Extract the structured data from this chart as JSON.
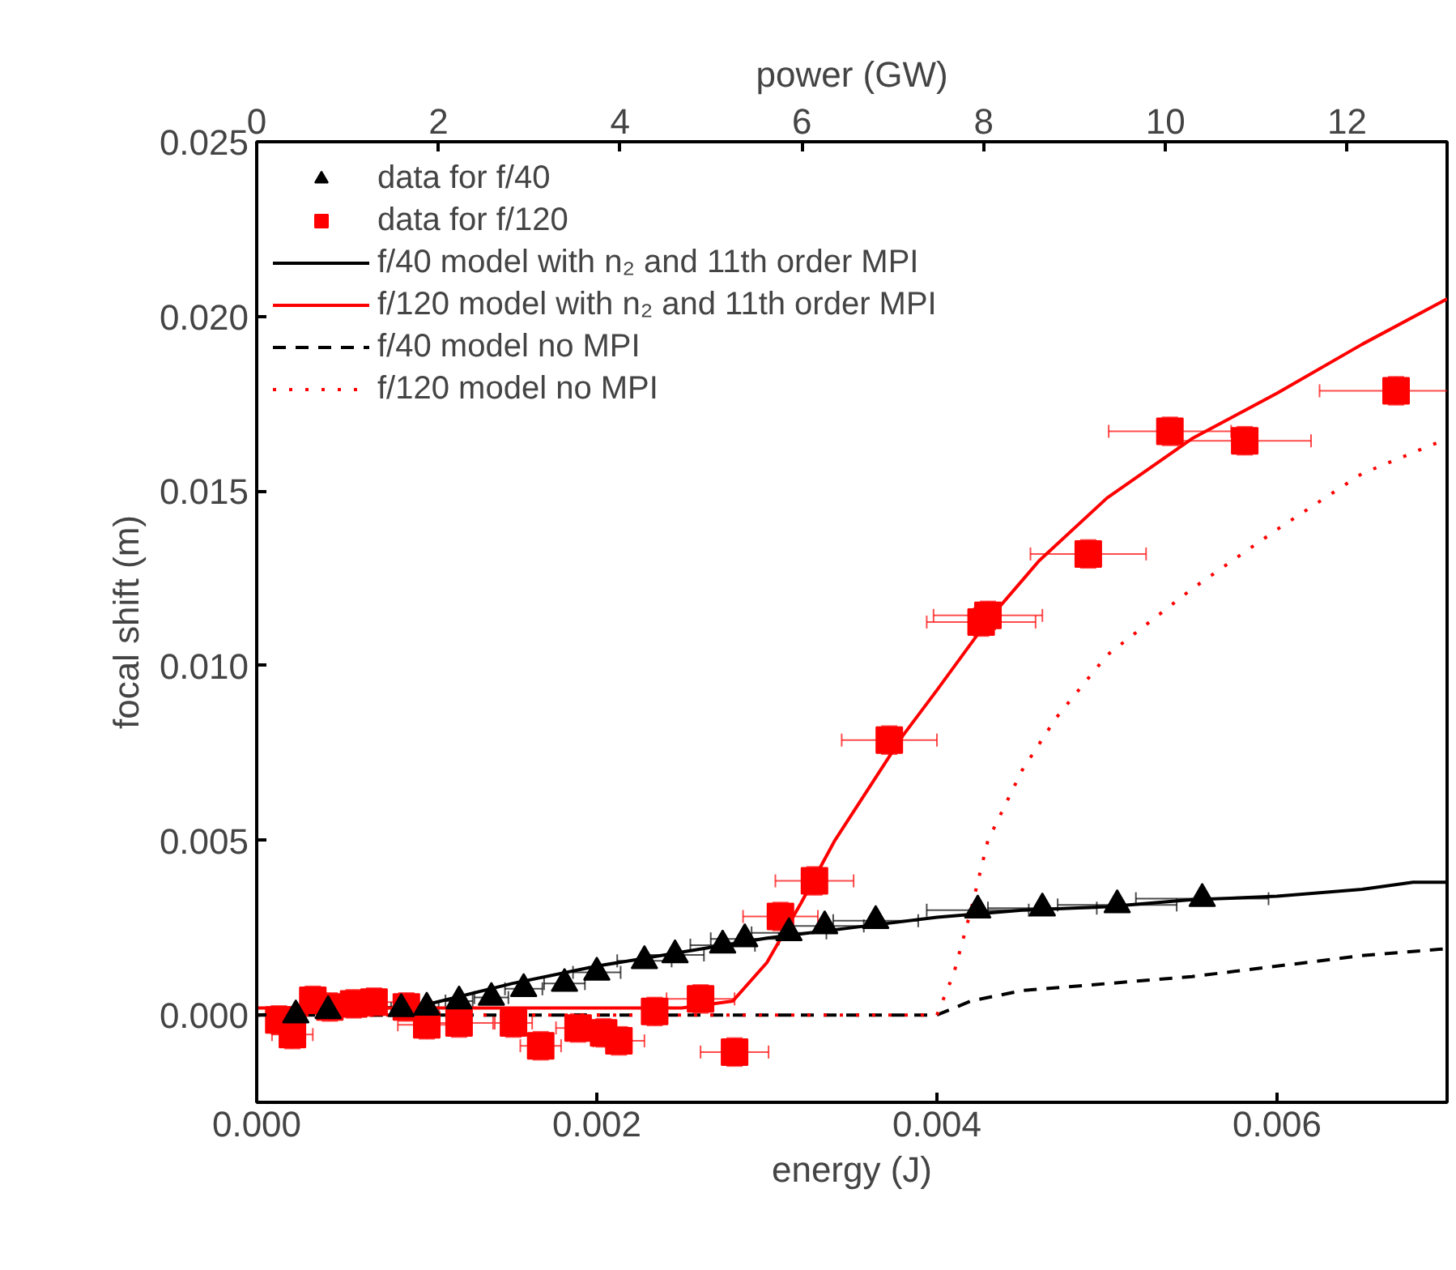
{
  "chart_data": {
    "type": "scatter",
    "xlabel": "energy (J)",
    "ylabel": "focal shift (m)",
    "x2label": "power (GW)",
    "xlim": [
      0,
      0.007
    ],
    "xticks": [
      {
        "value": 0,
        "label": "0.000"
      },
      {
        "value": 0.002,
        "label": "0.002"
      },
      {
        "value": 0.004,
        "label": "0.004"
      },
      {
        "value": 0.006,
        "label": "0.006"
      }
    ],
    "ylim": [
      -0.0025,
      0.025
    ],
    "yticks": [
      {
        "value": 0,
        "label": "0.000"
      },
      {
        "value": 0.005,
        "label": "0.005"
      },
      {
        "value": 0.01,
        "label": "0.010"
      },
      {
        "value": 0.015,
        "label": "0.015"
      },
      {
        "value": 0.02,
        "label": "0.020"
      },
      {
        "value": 0.025,
        "label": "0.025"
      }
    ],
    "x2lim": [
      0,
      13.1
    ],
    "x2ticks": [
      0,
      2,
      4,
      6,
      8,
      10,
      12
    ],
    "grid": false,
    "legend": "top left",
    "series": [
      {
        "name": "data for f/40",
        "type": "scatter",
        "marker": "triangle",
        "color": "#000000",
        "x": [
          0.00023,
          0.00042,
          0.00085,
          0.001,
          0.00119,
          0.00138,
          0.00157,
          0.00181,
          0.002,
          0.00228,
          0.00246,
          0.00274,
          0.00287,
          0.00313,
          0.00334,
          0.00364,
          0.00424,
          0.00462,
          0.00506,
          0.00556
        ],
        "values": [
          0,
          0.00012,
          0.00018,
          0.00022,
          0.0004,
          0.0005,
          0.00075,
          0.0009,
          0.00122,
          0.00155,
          0.00172,
          0.002,
          0.00218,
          0.00235,
          0.00255,
          0.0027,
          0.003,
          0.00306,
          0.00315,
          0.00333
        ],
        "xerrors": [
          2e-05,
          3e-05,
          6e-05,
          7e-05,
          8e-05,
          0.0001,
          0.00011,
          0.00012,
          0.00014,
          0.00016,
          0.00017,
          0.00019,
          0.0002,
          0.00022,
          0.00023,
          0.00025,
          0.0003,
          0.00032,
          0.00035,
          0.00039
        ]
      },
      {
        "name": "data for f/120",
        "type": "scatter",
        "marker": "square",
        "color": "#ff0000",
        "x": [
          0.00013,
          0.00021,
          0.00033,
          0.00043,
          0.00057,
          0.00069,
          0.00088,
          0.001,
          0.00119,
          0.00151,
          0.00167,
          0.00189,
          0.00204,
          0.00213,
          0.00234,
          0.00261,
          0.00281,
          0.00308,
          0.00328,
          0.00372,
          0.00426,
          0.0043,
          0.00489,
          0.00537,
          0.00581,
          0.0067
        ],
        "values": [
          -0.00014,
          -0.00056,
          0.00042,
          0.00023,
          0.00032,
          0.00037,
          0.00023,
          -0.00028,
          -0.00023,
          -0.00023,
          -0.00088,
          -0.00037,
          -0.00051,
          -0.00074,
          0.0001,
          0.00046,
          -0.00106,
          0.00282,
          0.00384,
          0.00787,
          0.01125,
          0.01144,
          0.0132,
          0.01671,
          0.01644,
          0.01787
        ],
        "errors": [
          0.0004,
          0.0004,
          0.0004,
          0.0004,
          0.0004,
          0.0004,
          0.0004,
          0.0004,
          0.0004,
          0.0004,
          0.0004,
          0.0004,
          0.0004,
          0.0004,
          0.0004,
          0.0004,
          0.0004,
          0.0004,
          0.0004,
          0.0004,
          0.0004,
          0.0004,
          0.0004,
          0.0004,
          0.0004,
          0.0004
        ],
        "xerrors": [
          null,
          0.00012,
          6e-05,
          8e-05,
          0.0001,
          0.00012,
          0.00015,
          0.00017,
          0.0002,
          0.00011,
          0.00012,
          0.00013,
          0.00014,
          0.00015,
          null,
          0.0002,
          0.0002,
          0.00022,
          0.00023,
          0.00028,
          0.00032,
          0.00032,
          0.00034,
          0.00036,
          0.00039,
          0.00045
        ]
      },
      {
        "name": "f/40 model with n₂ and 11th order MPI",
        "type": "line",
        "line_style": "solid",
        "color": "#000000",
        "x": [
          0,
          0.0005,
          0.001,
          0.0015,
          0.002,
          0.0025,
          0.003,
          0.0035,
          0.004,
          0.0045,
          0.005,
          0.0055,
          0.006,
          0.0065,
          0.0068,
          0.007
        ],
        "values": [
          0,
          0.0001,
          0.0003,
          0.0009,
          0.0014,
          0.0018,
          0.0022,
          0.0025,
          0.0028,
          0.003,
          0.0031,
          0.0033,
          0.0034,
          0.0036,
          0.0038,
          0.0038
        ]
      },
      {
        "name": "f/120 model with n₂ and 11th order MPI",
        "type": "line",
        "line_style": "solid",
        "color": "#ff0000",
        "x": [
          0,
          0.0025,
          0.0028,
          0.003,
          0.0032,
          0.0034,
          0.0036,
          0.0038,
          0.004,
          0.0043,
          0.0046,
          0.005,
          0.0055,
          0.006,
          0.0065,
          0.007
        ],
        "values": [
          0.0002,
          0.0002,
          0.0004,
          0.0015,
          0.0032,
          0.005,
          0.0065,
          0.008,
          0.0093,
          0.0113,
          0.013,
          0.0148,
          0.0165,
          0.0178,
          0.0192,
          0.0205
        ]
      },
      {
        "name": "f/40 model no MPI",
        "type": "line",
        "line_style": "dashed",
        "color": "#000000",
        "x": [
          0,
          0.004,
          0.0042,
          0.0045,
          0.005,
          0.0055,
          0.006,
          0.0065,
          0.007
        ],
        "values": [
          0,
          0,
          0.0004,
          0.0007,
          0.0009,
          0.0011,
          0.0014,
          0.0017,
          0.0019
        ]
      },
      {
        "name": "f/120 model no MPI",
        "type": "line",
        "line_style": "dotted",
        "color": "#ff0000",
        "x": [
          0,
          0.004,
          0.0041,
          0.0042,
          0.0043,
          0.0045,
          0.0047,
          0.005,
          0.0055,
          0.006,
          0.0065,
          0.007
        ],
        "values": [
          0,
          0,
          0.0012,
          0.003,
          0.005,
          0.007,
          0.0085,
          0.0103,
          0.0122,
          0.0139,
          0.0155,
          0.0165
        ]
      }
    ]
  }
}
